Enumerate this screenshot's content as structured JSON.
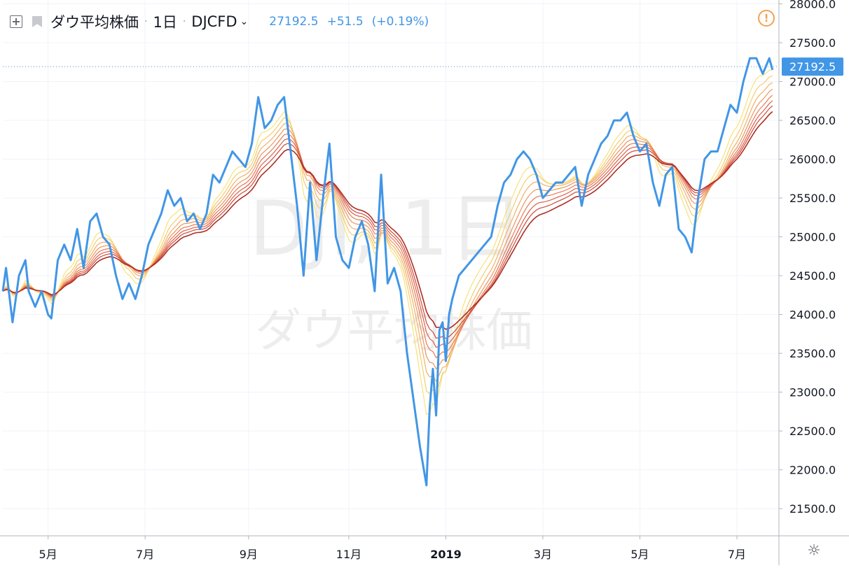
{
  "legend": {
    "title": "ダウ平均株価",
    "interval": "1日",
    "source": "DJCFD",
    "last": "27192.5",
    "change": "+51.5",
    "change_pct": "(+0.19%)"
  },
  "watermark": {
    "line1": "DJI, 1日",
    "line2": "ダウ平均株価"
  },
  "price_label": "27192.5",
  "colors": {
    "price": "#4196e6",
    "ribbon": [
      "#f7e27a",
      "#f5cc6d",
      "#f1b065",
      "#ec955e",
      "#e57b56",
      "#dc6149",
      "#cc4a3b",
      "#ad2f24"
    ]
  },
  "chart_data": {
    "type": "line",
    "ylim": [
      21150,
      28050
    ],
    "x_ticks": [
      {
        "label": "5月",
        "t": 14
      },
      {
        "label": "7月",
        "t": 44
      },
      {
        "label": "9月",
        "t": 76
      },
      {
        "label": "11月",
        "t": 107
      },
      {
        "label": "2019",
        "t": 137
      },
      {
        "label": "3月",
        "t": 167
      },
      {
        "label": "5月",
        "t": 197
      },
      {
        "label": "7月",
        "t": 227
      }
    ],
    "y_ticks": [
      "21500.0",
      "22000.0",
      "22500.0",
      "23000.0",
      "23500.0",
      "24000.0",
      "24500.0",
      "25000.0",
      "25500.0",
      "26000.0",
      "26500.0",
      "27000.0",
      "27500.0",
      "28000.0"
    ],
    "x_max": 240,
    "price_series": {
      "t": [
        0,
        1,
        3,
        5,
        7,
        8,
        10,
        12,
        14,
        15,
        17,
        19,
        21,
        23,
        25,
        27,
        29,
        31,
        33,
        35,
        37,
        39,
        41,
        43,
        45,
        47,
        49,
        51,
        53,
        55,
        57,
        59,
        61,
        63,
        65,
        67,
        69,
        71,
        73,
        75,
        77,
        79,
        81,
        83,
        85,
        87,
        89,
        91,
        93,
        95,
        97,
        99,
        101,
        103,
        105,
        107,
        109,
        111,
        113,
        115,
        117,
        119,
        121,
        123,
        125,
        127,
        129,
        131,
        132,
        133,
        134,
        135,
        136,
        137,
        138,
        139,
        141,
        143,
        145,
        147,
        149,
        151,
        153,
        155,
        157,
        159,
        161,
        163,
        165,
        167,
        169,
        171,
        173,
        175,
        177,
        179,
        181,
        183,
        185,
        187,
        189,
        191,
        193,
        195,
        197,
        199,
        201,
        203,
        205,
        207,
        209,
        211,
        213,
        215,
        217,
        219,
        221,
        223,
        225,
        227,
        229,
        231,
        233,
        235,
        237,
        238
      ],
      "values": [
        24300,
        24600,
        23900,
        24500,
        24700,
        24300,
        24100,
        24300,
        24000,
        23950,
        24700,
        24900,
        24700,
        25100,
        24600,
        25200,
        25300,
        25000,
        24900,
        24500,
        24200,
        24400,
        24200,
        24500,
        24900,
        25100,
        25300,
        25600,
        25400,
        25500,
        25200,
        25300,
        25100,
        25300,
        25800,
        25700,
        25900,
        26100,
        26000,
        25900,
        26200,
        26800,
        26400,
        26500,
        26700,
        26800,
        26100,
        25400,
        24500,
        25700,
        24700,
        25500,
        26200,
        25000,
        24700,
        24600,
        25000,
        25200,
        24900,
        24300,
        25800,
        24400,
        24600,
        24300,
        23500,
        22900,
        22300,
        21800,
        22800,
        23300,
        22700,
        23800,
        23900,
        23400,
        24000,
        24200,
        24500,
        24600,
        24700,
        24800,
        24900,
        25000,
        25400,
        25700,
        25800,
        26000,
        26100,
        26000,
        25800,
        25500,
        25600,
        25700,
        25700,
        25800,
        25900,
        25400,
        25800,
        26000,
        26200,
        26300,
        26500,
        26500,
        26600,
        26300,
        26100,
        26200,
        25700,
        25400,
        25800,
        25900,
        25100,
        25000,
        24800,
        25500,
        26000,
        26100,
        26100,
        26400,
        26700,
        26600,
        27000,
        27300,
        27300,
        27100,
        27300,
        27150
      ],
      "name": ""
    }
  }
}
